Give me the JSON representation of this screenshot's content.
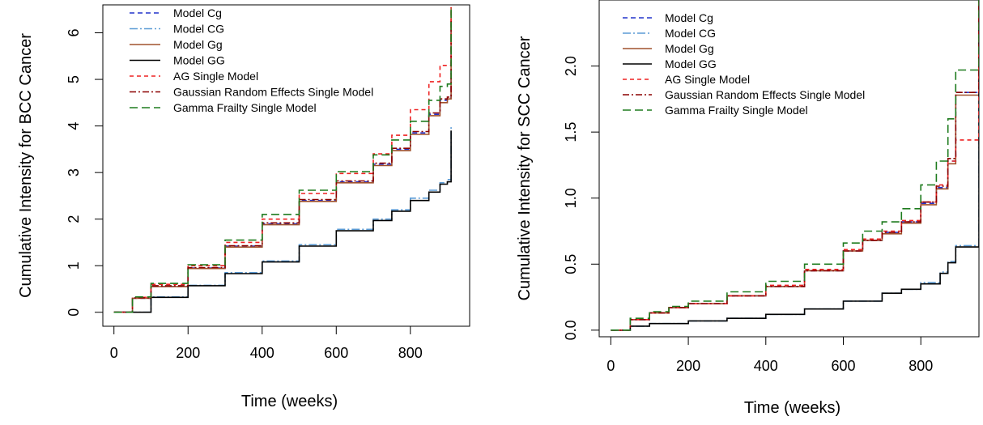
{
  "chart_data": [
    {
      "type": "line",
      "xlabel": "Time (weeks)",
      "ylabel": "Cumulative Intensity for BCC Cancer",
      "xlim": [
        -30,
        960
      ],
      "ylim": [
        -0.3,
        6.6
      ],
      "xticks": [
        0,
        200,
        400,
        600,
        800
      ],
      "xtick_labels": [
        "0",
        "200",
        "400",
        "600",
        "800"
      ],
      "yticks": [
        0,
        1,
        2,
        3,
        4,
        5,
        6
      ],
      "ytick_labels": [
        "0",
        "1",
        "2",
        "3",
        "4",
        "5",
        "6"
      ],
      "grid": false,
      "legend_position": "top-left",
      "series": [
        {
          "name": "Model Cg",
          "color": "#2233cc",
          "dash": "6,4",
          "x": [
            0,
            50,
            100,
            200,
            300,
            400,
            500,
            600,
            700,
            750,
            800,
            850,
            880,
            900,
            910
          ],
          "y": [
            0,
            0.3,
            0.55,
            0.95,
            1.42,
            1.9,
            2.4,
            2.8,
            3.18,
            3.5,
            3.85,
            4.25,
            4.55,
            4.6,
            6.2
          ]
        },
        {
          "name": "Model CG",
          "color": "#5b9bd5",
          "dash": "10,3,2,3",
          "x": [
            0,
            100,
            200,
            300,
            400,
            500,
            600,
            700,
            750,
            800,
            850,
            880,
            900,
            910
          ],
          "y": [
            0,
            0.33,
            0.58,
            0.85,
            1.1,
            1.45,
            1.78,
            2.0,
            2.2,
            2.45,
            2.62,
            2.78,
            2.85,
            4.0
          ]
        },
        {
          "name": "Model Gg",
          "color": "#a0522d",
          "dash": "",
          "x": [
            0,
            50,
            100,
            200,
            300,
            400,
            500,
            600,
            700,
            750,
            800,
            850,
            880,
            900,
            910
          ],
          "y": [
            0,
            0.3,
            0.55,
            0.94,
            1.4,
            1.88,
            2.38,
            2.78,
            3.15,
            3.47,
            3.82,
            4.22,
            4.5,
            4.58,
            6.55
          ]
        },
        {
          "name": "Model GG",
          "color": "#000000",
          "dash": "",
          "x": [
            0,
            100,
            200,
            300,
            400,
            500,
            600,
            700,
            750,
            800,
            850,
            880,
            900,
            910
          ],
          "y": [
            0,
            0.32,
            0.57,
            0.83,
            1.08,
            1.42,
            1.75,
            1.97,
            2.17,
            2.4,
            2.58,
            2.75,
            2.8,
            3.9
          ]
        },
        {
          "name": "AG Single Model",
          "color": "#ee2222",
          "dash": "5,4",
          "x": [
            0,
            50,
            100,
            200,
            300,
            400,
            500,
            600,
            700,
            750,
            800,
            850,
            880,
            900,
            910
          ],
          "y": [
            0,
            0.32,
            0.6,
            1.0,
            1.5,
            2.0,
            2.55,
            2.98,
            3.4,
            3.8,
            4.35,
            4.95,
            5.3,
            5.3,
            6.55
          ]
        },
        {
          "name": "Gaussian Random Effects Single Model",
          "color": "#8b0000",
          "dash": "8,3,2,3",
          "x": [
            0,
            50,
            100,
            200,
            300,
            400,
            500,
            600,
            700,
            750,
            800,
            850,
            880,
            900,
            910
          ],
          "y": [
            0,
            0.31,
            0.57,
            0.96,
            1.43,
            1.92,
            2.42,
            2.82,
            3.2,
            3.52,
            3.88,
            4.28,
            4.58,
            4.62,
            6.3
          ]
        },
        {
          "name": "Gamma Frailty Single Model",
          "color": "#1e7b1e",
          "dash": "10,5",
          "x": [
            0,
            50,
            100,
            200,
            300,
            400,
            500,
            600,
            700,
            750,
            800,
            850,
            880,
            900,
            910
          ],
          "y": [
            0,
            0.33,
            0.62,
            1.02,
            1.55,
            2.1,
            2.62,
            3.02,
            3.38,
            3.7,
            4.1,
            4.55,
            4.85,
            4.9,
            6.5
          ]
        }
      ]
    },
    {
      "type": "line",
      "xlabel": "Time (weeks)",
      "ylabel": "Cumulative Intensity for SCC Cancer",
      "xlim": [
        -30,
        950
      ],
      "ylim": [
        -0.05,
        2.5
      ],
      "xticks": [
        0,
        200,
        400,
        600,
        800
      ],
      "xtick_labels": [
        "0",
        "200",
        "400",
        "600",
        "800"
      ],
      "yticks": [
        0.0,
        0.5,
        1.0,
        1.5,
        2.0
      ],
      "ytick_labels": [
        "0.0",
        "0.5",
        "1.0",
        "1.5",
        "2.0"
      ],
      "grid": false,
      "legend_position": "top-left",
      "series": [
        {
          "name": "Model Cg",
          "color": "#2233cc",
          "dash": "6,4",
          "x": [
            0,
            50,
            100,
            150,
            200,
            300,
            400,
            500,
            600,
            650,
            700,
            750,
            800,
            840,
            870,
            890,
            945,
            950
          ],
          "y": [
            0,
            0.08,
            0.13,
            0.17,
            0.2,
            0.26,
            0.33,
            0.45,
            0.6,
            0.68,
            0.74,
            0.82,
            0.96,
            1.08,
            1.28,
            1.8,
            1.8,
            2.5
          ]
        },
        {
          "name": "Model CG",
          "color": "#5b9bd5",
          "dash": "10,3,2,3",
          "x": [
            0,
            50,
            100,
            200,
            300,
            400,
            500,
            600,
            700,
            750,
            800,
            850,
            870,
            890,
            945,
            950
          ],
          "y": [
            0,
            0.03,
            0.05,
            0.07,
            0.09,
            0.12,
            0.16,
            0.22,
            0.28,
            0.31,
            0.36,
            0.44,
            0.52,
            0.64,
            0.64,
            2.5
          ]
        },
        {
          "name": "Model Gg",
          "color": "#a0522d",
          "dash": "",
          "x": [
            0,
            50,
            100,
            150,
            200,
            300,
            400,
            500,
            600,
            650,
            700,
            750,
            800,
            840,
            870,
            890,
            945,
            950
          ],
          "y": [
            0,
            0.08,
            0.13,
            0.17,
            0.2,
            0.26,
            0.33,
            0.45,
            0.6,
            0.68,
            0.73,
            0.81,
            0.95,
            1.07,
            1.26,
            1.78,
            1.78,
            2.5
          ]
        },
        {
          "name": "Model GG",
          "color": "#000000",
          "dash": "",
          "x": [
            0,
            50,
            100,
            200,
            300,
            400,
            500,
            600,
            700,
            750,
            800,
            850,
            870,
            890,
            945,
            950
          ],
          "y": [
            0,
            0.03,
            0.05,
            0.07,
            0.09,
            0.12,
            0.16,
            0.22,
            0.28,
            0.31,
            0.35,
            0.43,
            0.51,
            0.63,
            0.63,
            2.5
          ]
        },
        {
          "name": "AG Single Model",
          "color": "#ee2222",
          "dash": "5,4",
          "x": [
            0,
            50,
            100,
            150,
            200,
            300,
            400,
            500,
            600,
            650,
            700,
            750,
            800,
            840,
            870,
            890,
            945,
            950
          ],
          "y": [
            0,
            0.08,
            0.13,
            0.17,
            0.2,
            0.26,
            0.34,
            0.46,
            0.61,
            0.69,
            0.75,
            0.83,
            0.97,
            1.1,
            1.28,
            1.44,
            1.44,
            2.5
          ]
        },
        {
          "name": "Gaussian Random Effects Single Model",
          "color": "#8b0000",
          "dash": "8,3,2,3",
          "x": [
            0,
            50,
            100,
            150,
            200,
            300,
            400,
            500,
            600,
            650,
            700,
            750,
            800,
            840,
            870,
            890,
            945,
            950
          ],
          "y": [
            0,
            0.08,
            0.13,
            0.17,
            0.2,
            0.26,
            0.33,
            0.45,
            0.6,
            0.68,
            0.74,
            0.82,
            0.97,
            1.09,
            1.3,
            1.8,
            1.8,
            2.5
          ]
        },
        {
          "name": "Gamma Frailty Single Model",
          "color": "#1e7b1e",
          "dash": "10,5",
          "x": [
            0,
            50,
            100,
            150,
            200,
            300,
            400,
            500,
            600,
            650,
            700,
            750,
            800,
            840,
            870,
            890,
            945,
            950
          ],
          "y": [
            0,
            0.09,
            0.14,
            0.18,
            0.22,
            0.29,
            0.37,
            0.5,
            0.66,
            0.75,
            0.82,
            0.92,
            1.1,
            1.28,
            1.6,
            1.97,
            1.97,
            2.5
          ]
        }
      ]
    }
  ]
}
